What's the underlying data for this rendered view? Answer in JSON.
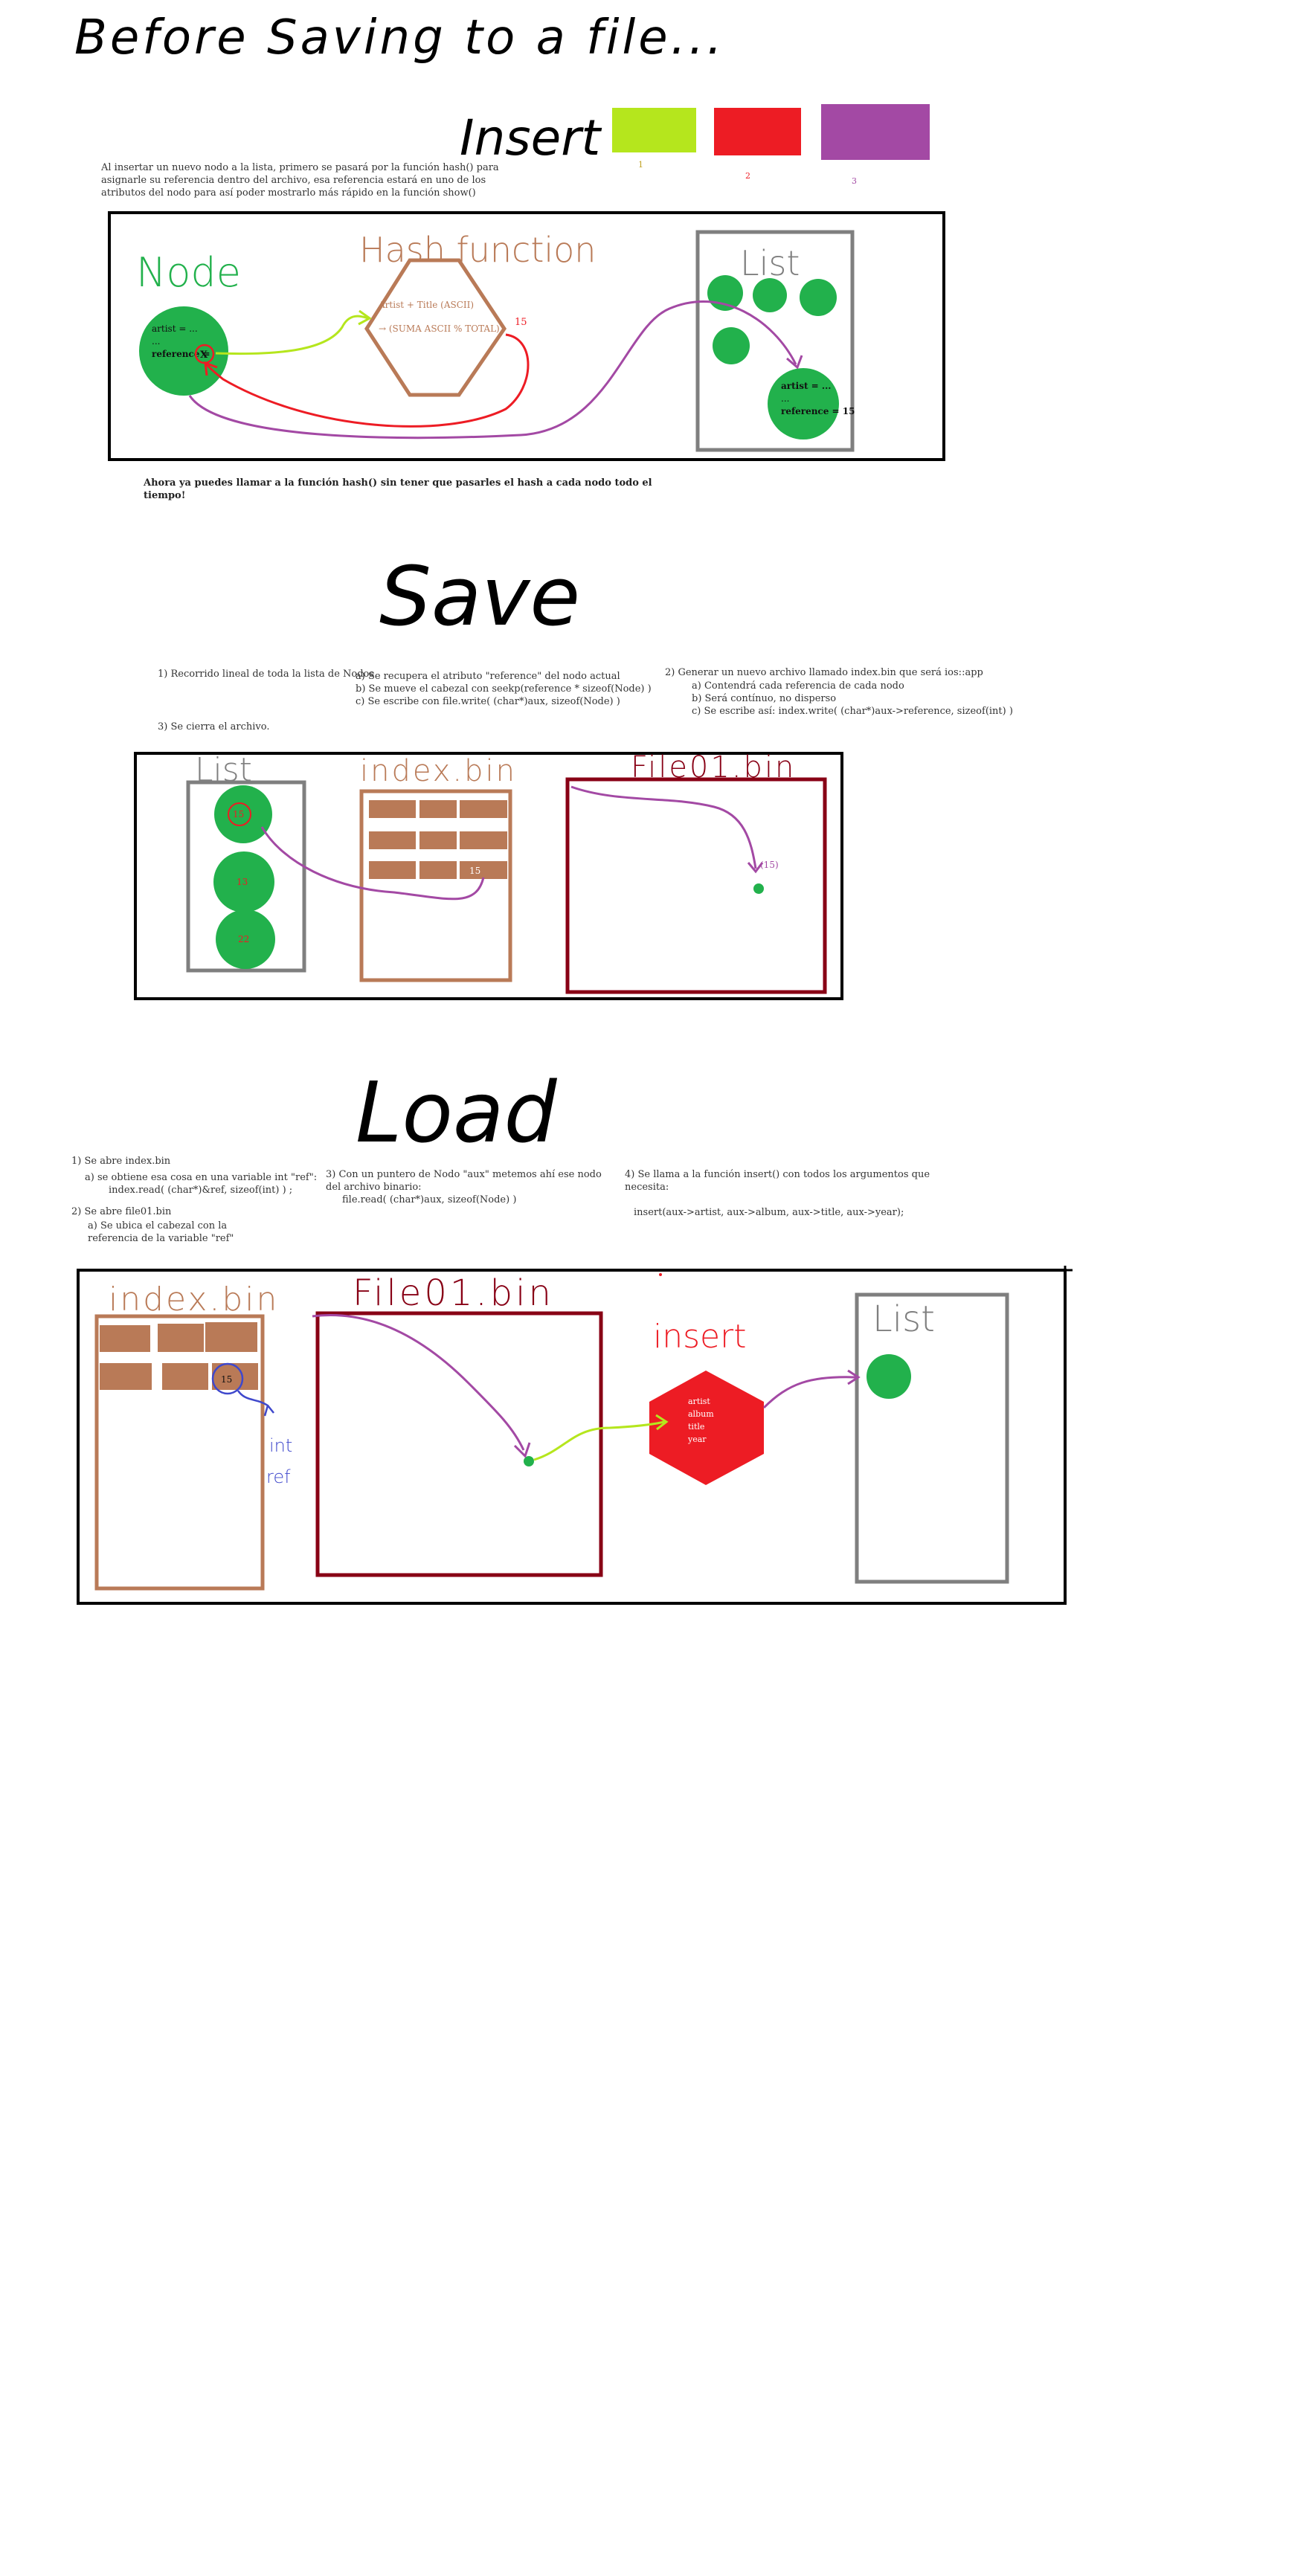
{
  "headings": {
    "before_saving": "Before Saving to a file...",
    "insert": "Insert",
    "save": "Save",
    "load": "Load"
  },
  "swatches": [
    {
      "label": "1",
      "color": "#b5e61d"
    },
    {
      "label": "2",
      "color": "#ed1c24"
    },
    {
      "label": "3",
      "color": "#a349a4"
    }
  ],
  "insert_section": {
    "intro_lines": [
      "Al insertar un nuevo nodo a la lista, primero se pasará por la función hash() para",
      "asignarle su referencia dentro del archivo, esa referencia estará en uno de los",
      "atributos del nodo para así poder mostrarlo más rápido en la función show()"
    ],
    "node_label": "Node",
    "node_fields": [
      "artist = ...",
      "...",
      "reference ="
    ],
    "node_ref_symbol": "X",
    "hash_label": "Hash function",
    "hash_text": [
      "Artist + Title (ASCII)",
      "→ (SUMA ASCII % TOTAL)"
    ],
    "hash_result": "15",
    "list_label": "List",
    "list_node_fields": [
      "artist = ...",
      "...",
      "reference = 15"
    ],
    "footer_lines": [
      "Ahora ya puedes llamar a la función hash() sin tener que pasarles el hash a cada nodo todo el",
      "tiempo!"
    ]
  },
  "save_section": {
    "step1": "1) Recorrido lineal de toda la lista de Nodos",
    "step1_sub": [
      "a) Se recupera el atributo \"reference\" del nodo actual",
      "b) Se mueve el cabezal con seekp(reference * sizeof(Node) )",
      "c) Se escribe con file.write( (char*)aux, sizeof(Node) )"
    ],
    "step2": "2) Generar un nuevo archivo llamado index.bin que será ios::app",
    "step2_sub": [
      "a) Contendrá cada referencia de cada nodo",
      "b) Será contínuo, no disperso",
      "c) Se escribe así: index.write( (char*)aux->reference, sizeof(int) )"
    ],
    "step3": "3) Se cierra el archivo.",
    "list_label": "List",
    "index_label": "index.bin",
    "file_label": "File01.bin",
    "node_values": [
      "15",
      "13",
      "22"
    ],
    "index_value": "15",
    "file_marker": "(15)"
  },
  "load_section": {
    "step1": "1) Se abre index.bin",
    "step1a": "a) se obtiene esa cosa en una variable int \"ref\":",
    "step1a_code": "index.read( (char*)&ref, sizeof(int) ) ;",
    "step2": "2) Se abre file01.bin",
    "step2a": "a) Se ubica el cabezal con la",
    "step2a_cont": "referencia de la variable \"ref\"",
    "step3": "3) Con un puntero de Nodo \"aux\" metemos ahí ese nodo",
    "step3_cont": "del archivo binario:",
    "step3_code": "file.read( (char*)aux, sizeof(Node) )",
    "step4": "4) Se llama a la función insert() con todos los argumentos que",
    "step4_cont": "necesita:",
    "step4_code": "insert(aux->artist, aux->album, aux->title, aux->year);",
    "index_label": "index.bin",
    "file_label": "File01.bin",
    "insert_label": "insert",
    "list_label": "List",
    "insert_fields": [
      "artist",
      "album",
      "title",
      "year"
    ],
    "index_value": "15",
    "ref_annotation": [
      "int",
      "ref"
    ]
  }
}
